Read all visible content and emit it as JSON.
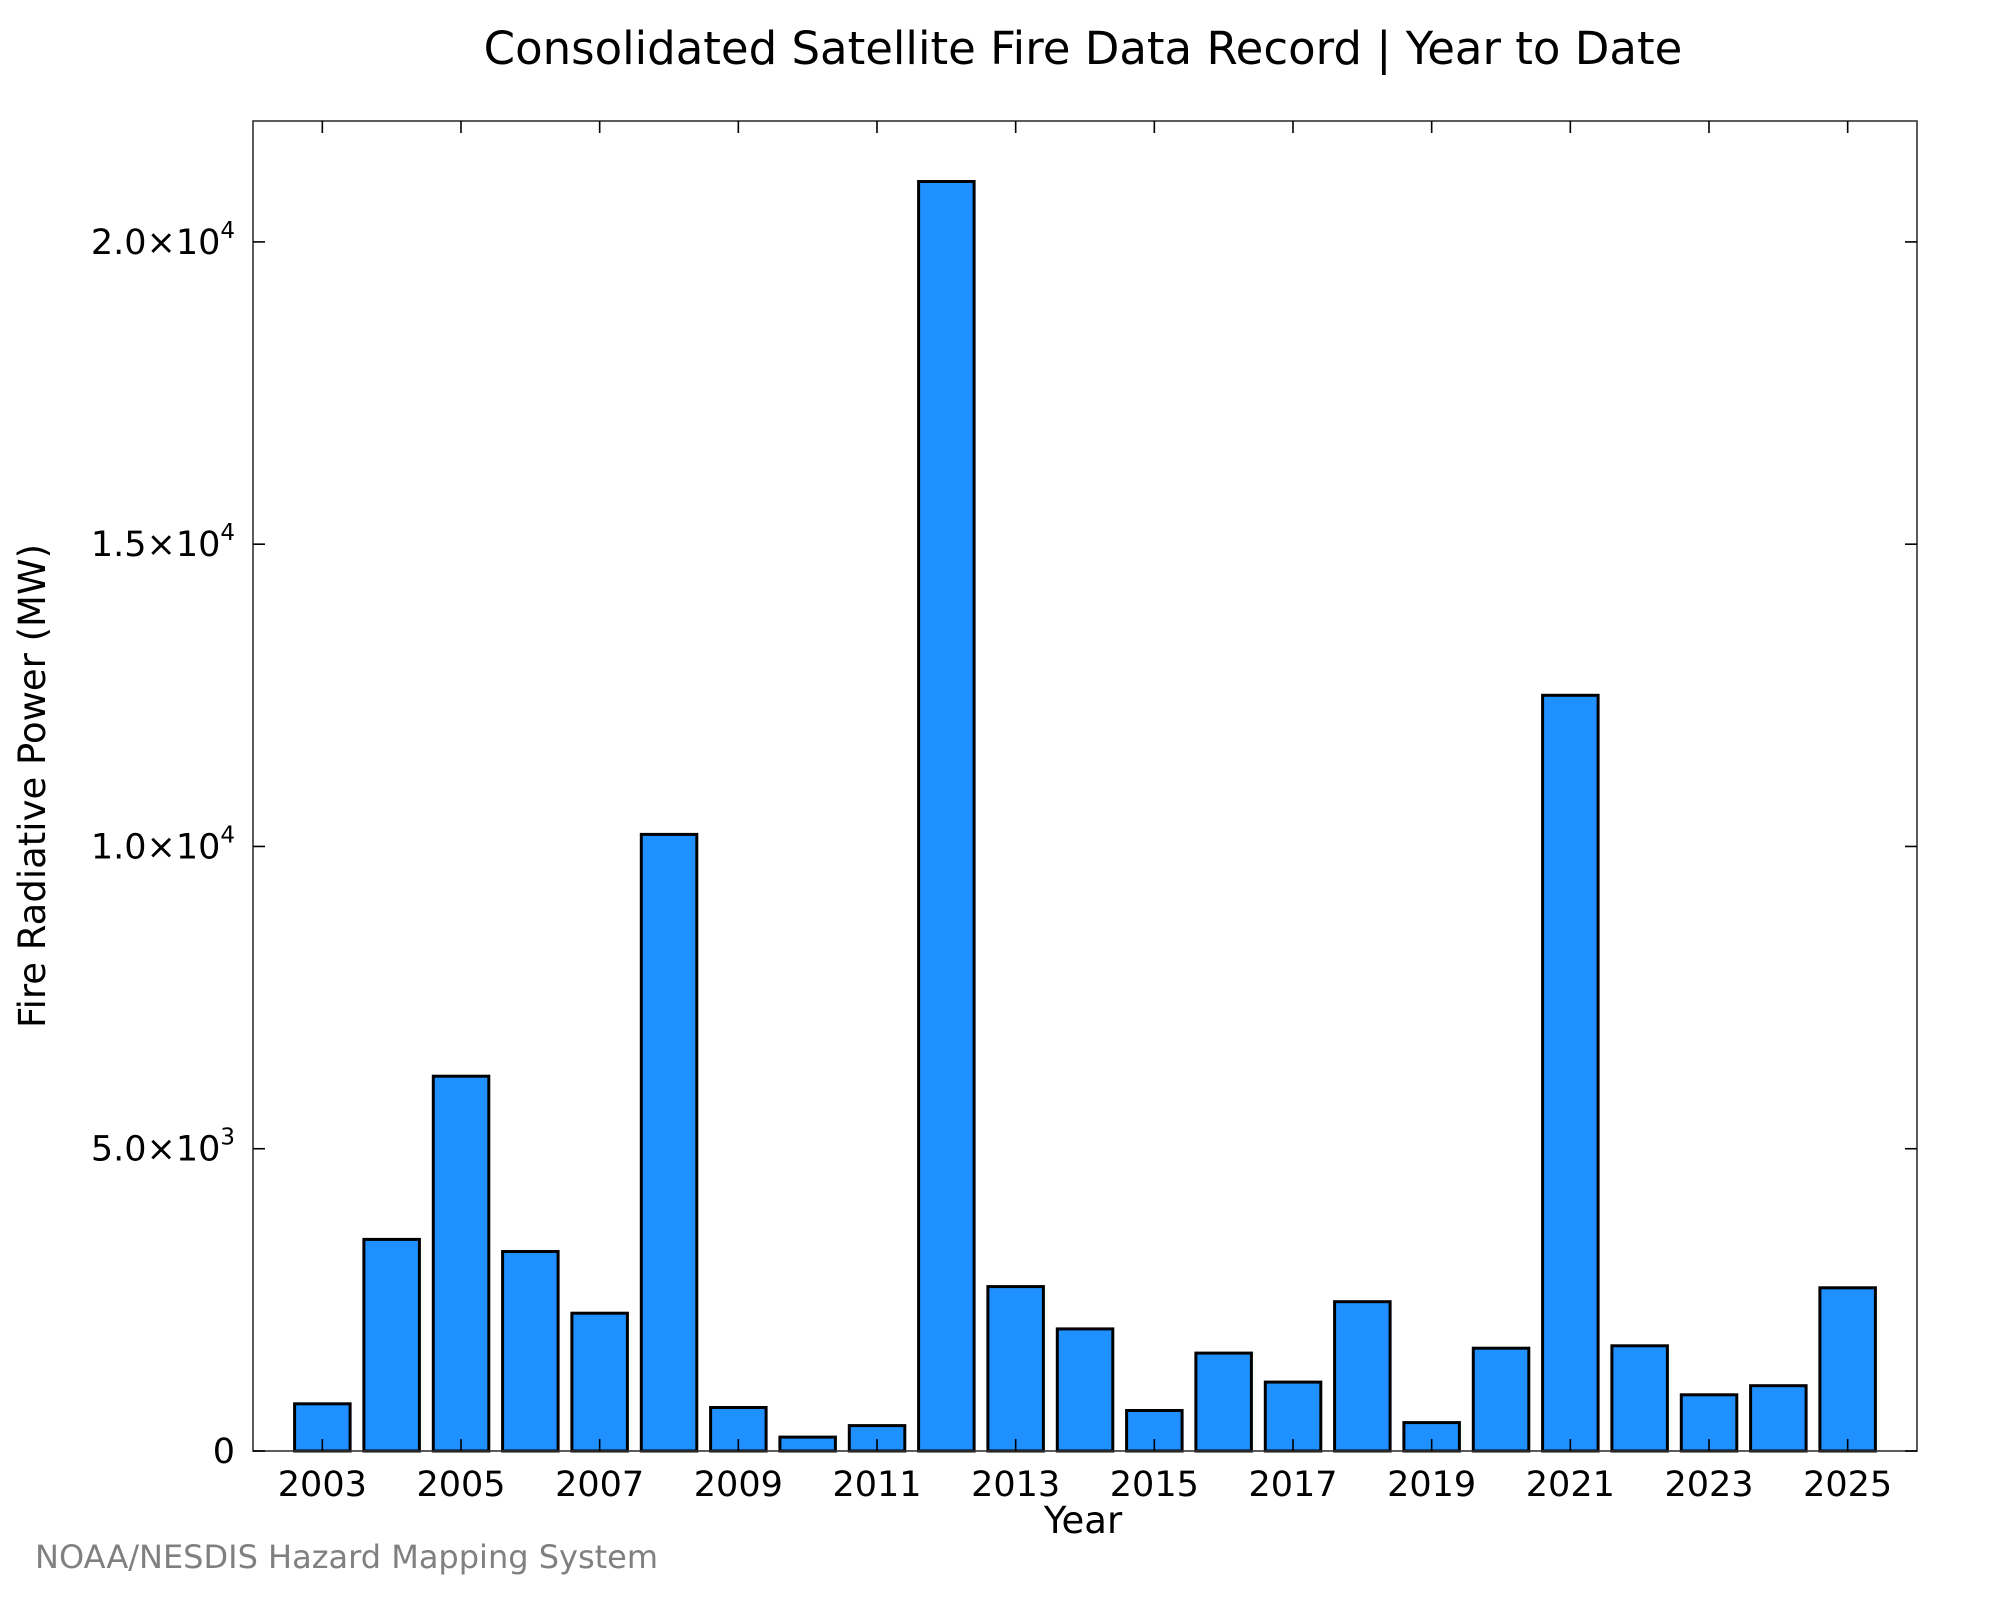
{
  "chart_data": {
    "type": "bar",
    "title": "Consolidated Satellite Fire Data Record | Year to Date",
    "xlabel": "Year",
    "ylabel": "Fire Radiative Power (MW)",
    "categories": [
      "2003",
      "2004",
      "2005",
      "2006",
      "2007",
      "2008",
      "2009",
      "2010",
      "2011",
      "2012",
      "2013",
      "2014",
      "2015",
      "2016",
      "2017",
      "2018",
      "2019",
      "2020",
      "2021",
      "2022",
      "2023",
      "2024",
      "2025"
    ],
    "values": [
      780,
      3500,
      6200,
      3300,
      2280,
      10200,
      720,
      230,
      420,
      21000,
      2720,
      2020,
      670,
      1620,
      1140,
      2470,
      470,
      1700,
      12500,
      1740,
      930,
      1080,
      2700
    ],
    "x_tick_labels": [
      "2003",
      "2005",
      "2007",
      "2009",
      "2011",
      "2013",
      "2015",
      "2017",
      "2019",
      "2021",
      "2023",
      "2025"
    ],
    "y_ticks": [
      {
        "value": 0,
        "mantissa": "0",
        "exponent": ""
      },
      {
        "value": 5000,
        "mantissa": "5.0×10",
        "exponent": "3"
      },
      {
        "value": 10000,
        "mantissa": "1.0×10",
        "exponent": "4"
      },
      {
        "value": 15000,
        "mantissa": "1.5×10",
        "exponent": "4"
      },
      {
        "value": 20000,
        "mantissa": "2.0×10",
        "exponent": "4"
      }
    ],
    "ylim": [
      0,
      22000
    ],
    "xlim": [
      2002.0,
      2026.0
    ],
    "bar_color": "#1E90FF",
    "grid": false,
    "legend": "none"
  },
  "footer": {
    "credit": "NOAA/NESDIS Hazard Mapping System"
  }
}
